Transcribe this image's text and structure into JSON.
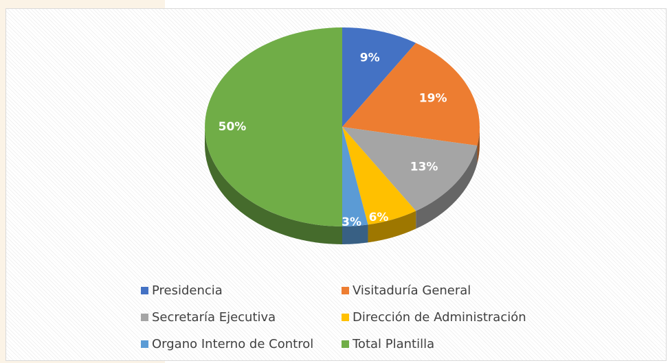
{
  "chart_data": {
    "type": "pie3d",
    "categories": [
      "Presidencia",
      "Visitaduría General",
      "Secretaría Ejecutiva",
      "Dirección de Administración",
      "Organo Interno de Control",
      "Total Plantilla"
    ],
    "values": [
      9,
      19,
      13,
      6,
      3,
      50
    ],
    "value_labels": [
      "9%",
      "19%",
      "13%",
      "6%",
      "3%",
      "50%"
    ],
    "colors": [
      "#4472c4",
      "#ed7d31",
      "#a5a5a5",
      "#ffc000",
      "#5b9bd5",
      "#70ad47"
    ],
    "legend": "bottom"
  }
}
